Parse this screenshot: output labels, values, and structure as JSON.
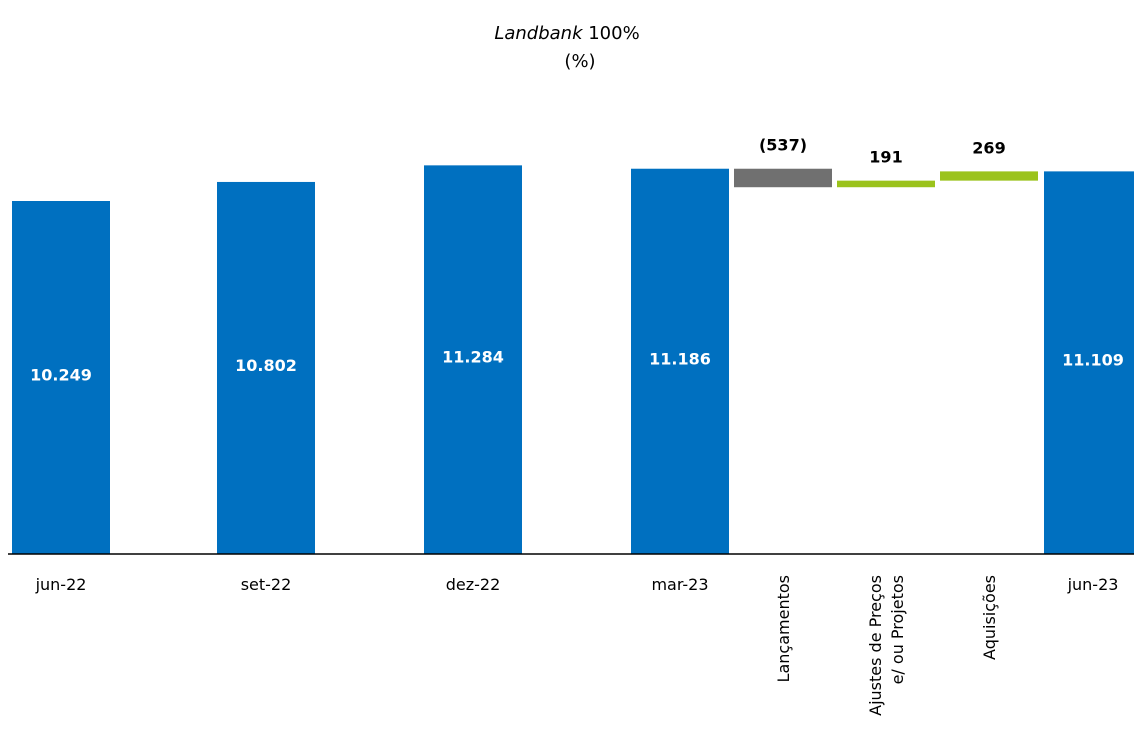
{
  "chart_data": {
    "type": "bar",
    "subtype": "waterfall",
    "title_italic": "Landbank",
    "title_rest": " 100%",
    "subtitle": "(%)",
    "xlabel": "",
    "ylabel": "",
    "grid": false,
    "legend": "none",
    "ylim": [
      0,
      12000
    ],
    "categories": [
      "jun-22",
      "set-22",
      "dez-22",
      "mar-23",
      "Lançamentos",
      "Ajustes de Preços e/ ou Projetos",
      "Aquisições",
      "jun-23"
    ],
    "category_lines": [
      [
        "jun-22"
      ],
      [
        "set-22"
      ],
      [
        "dez-22"
      ],
      [
        "mar-23"
      ],
      [
        "Lançamentos"
      ],
      [
        "Ajustes de Preços",
        "e/ ou Projetos"
      ],
      [
        "Aquisições"
      ],
      [
        "jun-23"
      ]
    ],
    "bars": [
      {
        "kind": "total",
        "value": 10249,
        "label": "10.249"
      },
      {
        "kind": "total",
        "value": 10802,
        "label": "10.802"
      },
      {
        "kind": "total",
        "value": 11284,
        "label": "11.284"
      },
      {
        "kind": "total",
        "value": 11186,
        "label": "11.186"
      },
      {
        "kind": "delta",
        "value": -537,
        "label": "(537)"
      },
      {
        "kind": "delta",
        "value": 191,
        "label": "191"
      },
      {
        "kind": "delta",
        "value": 269,
        "label": "269"
      },
      {
        "kind": "total",
        "value": 11109,
        "label": "11.109"
      }
    ],
    "colors": {
      "total": "#0070C0",
      "decrease": "#707070",
      "increase": "#9BC31C",
      "total_label": "#FFFFFF",
      "delta_label": "#000000",
      "axis": "#000000"
    }
  }
}
